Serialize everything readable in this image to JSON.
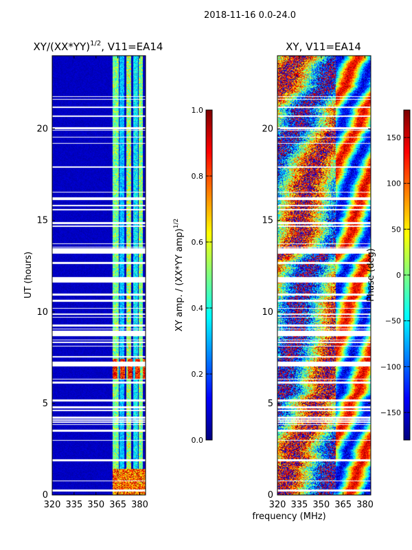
{
  "figure": {
    "suptitle": "2018-11-16 0.0-24.0",
    "xlabel": "frequency (MHz)"
  },
  "chart_data": [
    {
      "type": "heatmap",
      "title_main": "XY/(XX*YY)",
      "title_exp": "1/2",
      "title_rest": ", V11=EA14",
      "xlabel": "",
      "ylabel": "UT (hours)",
      "xlim": [
        320,
        384
      ],
      "ylim": [
        0,
        24
      ],
      "xticks": [
        320,
        335,
        350,
        365,
        380
      ],
      "yticks": [
        0,
        5,
        10,
        15,
        20
      ],
      "colorbar": {
        "label_main": "XY amp. / (XX*YY amp)",
        "label_exp": "1/2",
        "range": [
          0.0,
          1.0
        ],
        "ticks": [
          "0.0",
          "0.2",
          "0.4",
          "0.6",
          "0.8",
          "1.0"
        ]
      },
      "colormap": "jet",
      "description_free": true
    },
    {
      "type": "heatmap",
      "title": "XY, V11=EA14",
      "ylabel": "",
      "xlim": [
        320,
        384
      ],
      "ylim": [
        0,
        24
      ],
      "xticks": [
        320,
        335,
        350,
        365,
        380
      ],
      "yticks": [
        0,
        5,
        10,
        15,
        20
      ],
      "colorbar": {
        "label": "Phase (deg)",
        "range": [
          -180,
          180
        ],
        "ticks": [
          "−150",
          "−100",
          "−50",
          "0",
          "50",
          "100",
          "150"
        ],
        "tick_values": [
          -150,
          -100,
          -50,
          0,
          50,
          100,
          150
        ]
      },
      "colormap": "jet"
    }
  ]
}
